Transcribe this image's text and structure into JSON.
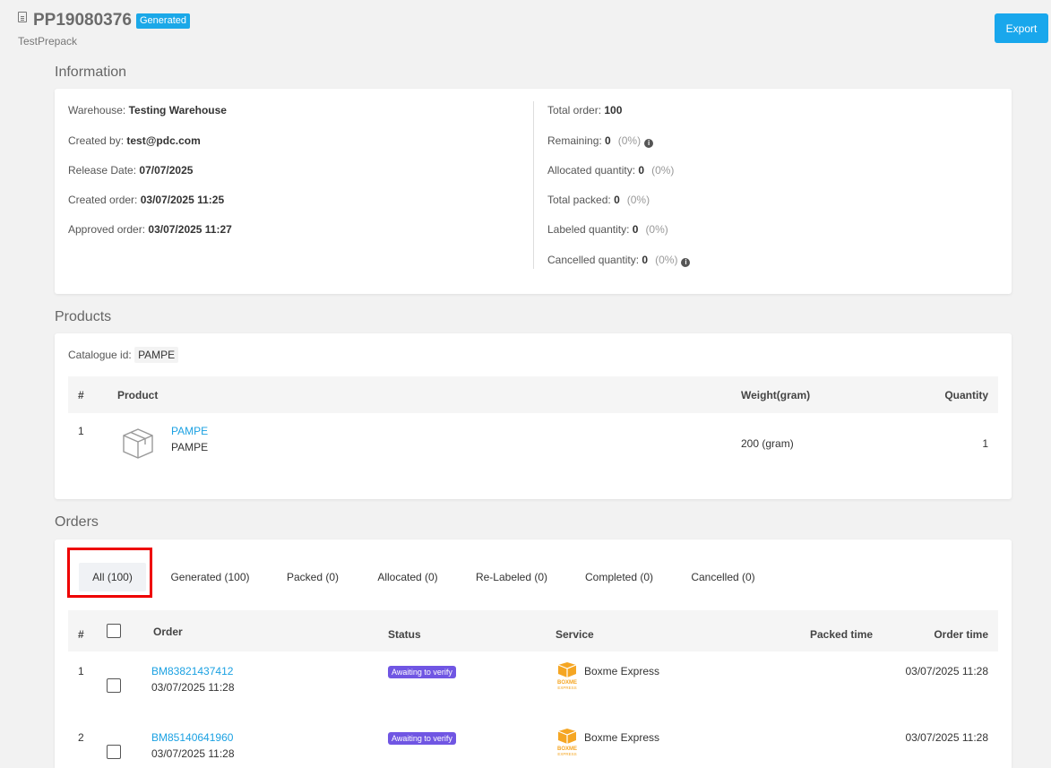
{
  "header": {
    "title": "PP19080376",
    "badge": "Generated",
    "subtitle": "TestPrepack",
    "export_label": "Export"
  },
  "information": {
    "section_title": "Information",
    "left": [
      {
        "label": "Warehouse:",
        "value": "Testing Warehouse"
      },
      {
        "label": "Created by:",
        "value": "test@pdc.com"
      },
      {
        "label": "Release Date:",
        "value": "07/07/2025"
      },
      {
        "label": "Created order:",
        "value": "03/07/2025 11:25"
      },
      {
        "label": "Approved order:",
        "value": "03/07/2025 11:27"
      }
    ],
    "right": [
      {
        "label": "Total order:",
        "value": "100",
        "pct": ""
      },
      {
        "label": "Remaining:",
        "value": "0",
        "pct": "(0%)"
      },
      {
        "label": "Allocated quantity:",
        "value": "0",
        "pct": "(0%)"
      },
      {
        "label": "Total packed:",
        "value": "0",
        "pct": "(0%)"
      },
      {
        "label": "Labeled quantity:",
        "value": "0",
        "pct": "(0%)"
      },
      {
        "label": "Cancelled quantity:",
        "value": "0",
        "pct": "(0%)"
      }
    ],
    "info_glyph": "i"
  },
  "products": {
    "section_title": "Products",
    "catalogue_label": "Catalogue id:",
    "catalogue_value": "PAMPE",
    "columns": {
      "num": "#",
      "product": "Product",
      "weight": "Weight(gram)",
      "quantity": "Quantity"
    },
    "rows": [
      {
        "num": "1",
        "sku": "PAMPE",
        "name": "PAMPE",
        "weight": "200 (gram)",
        "quantity": "1"
      }
    ]
  },
  "orders": {
    "section_title": "Orders",
    "tabs": [
      {
        "label": "All (100)",
        "active": true
      },
      {
        "label": "Generated (100)"
      },
      {
        "label": "Packed (0)"
      },
      {
        "label": "Allocated (0)"
      },
      {
        "label": "Re-Labeled (0)"
      },
      {
        "label": "Completed (0)"
      },
      {
        "label": "Cancelled (0)"
      }
    ],
    "columns": {
      "num": "#",
      "order": "Order",
      "status": "Status",
      "service": "Service",
      "packed_time": "Packed time",
      "order_time": "Order time"
    },
    "rows": [
      {
        "num": "1",
        "order_id": "BM83821437412",
        "order_date": "03/07/2025 11:28",
        "status": "Awaiting to verify",
        "service": "Boxme Express",
        "order_time": "03/07/2025 11:28"
      },
      {
        "num": "2",
        "order_id": "BM85140641960",
        "order_date": "03/07/2025 11:28",
        "status": "Awaiting to verify",
        "service": "Boxme Express",
        "order_time": "03/07/2025 11:28"
      }
    ],
    "logo_text": {
      "top": "BOXME",
      "bottom": "EXPRESS"
    }
  },
  "colors": {
    "accent": "#19a7ec",
    "status_badge": "#7056e3",
    "highlight": "#e00000",
    "logo": "#f5a623"
  }
}
